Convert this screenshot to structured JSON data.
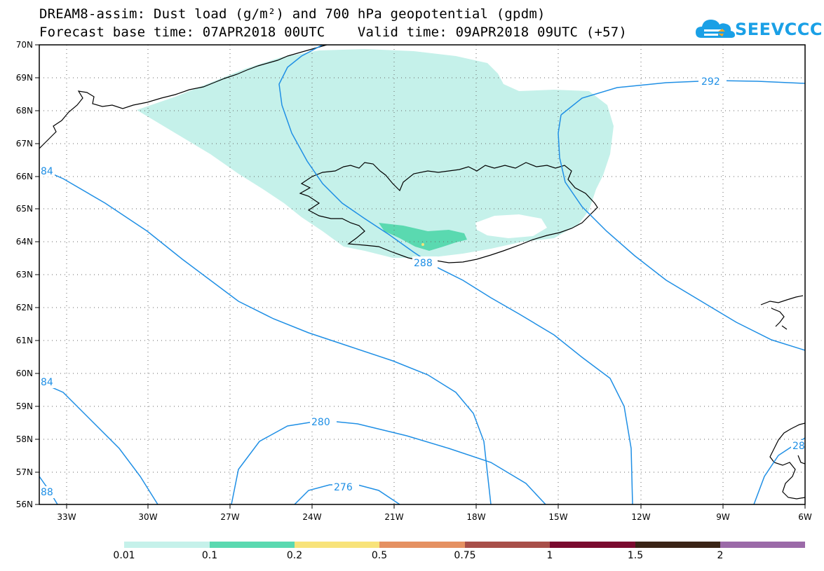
{
  "header": {
    "title_line1": "DREAM8-assim: Dust load (g/m²) and 700 hPa geopotential (gpdm)",
    "title_line2": "Forecast base time: 07APR2018 00UTC    Valid time: 09APR2018 09UTC (+57)",
    "logo_text": "SEEVCCC"
  },
  "map": {
    "lon_range": [
      -34.5,
      -6
    ],
    "lat_range": [
      56,
      70
    ],
    "lon_ticks": [
      "33W",
      "30W",
      "27W",
      "24W",
      "21W",
      "18W",
      "15W",
      "12W",
      "9W",
      "6W"
    ],
    "lat_ticks": [
      "70N",
      "69N",
      "68N",
      "67N",
      "66N",
      "65N",
      "64N",
      "63N",
      "62N",
      "61N",
      "60N",
      "59N",
      "58N",
      "57N",
      "56N"
    ],
    "contour_color": "#1f8fe5",
    "contour_labels": [
      "292",
      "84",
      "288",
      "84",
      "280",
      "276",
      "88",
      "28"
    ]
  },
  "legend": {
    "colors": [
      "#c5f1ea",
      "#5ad9b0",
      "#f8e37a",
      "#e59162",
      "#a84f49",
      "#7a0a2f",
      "#3a2416",
      "#9b6aa8"
    ],
    "labels": [
      "0.01",
      "0.1",
      "0.2",
      "0.5",
      "0.75",
      "1",
      "1.5",
      "2"
    ]
  }
}
